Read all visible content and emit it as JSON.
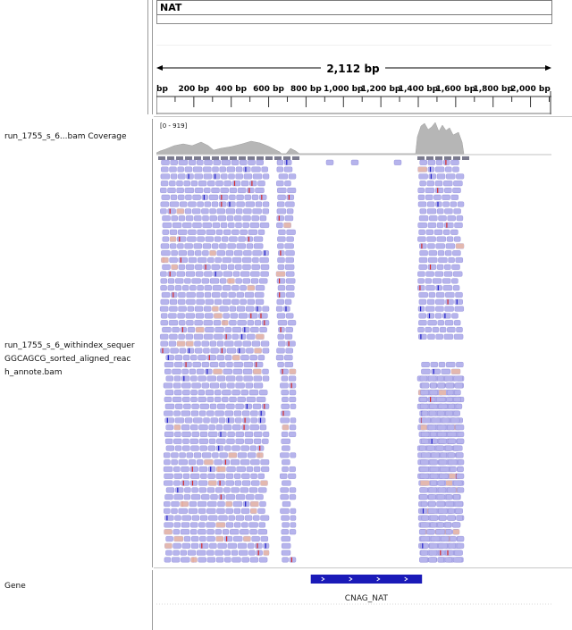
{
  "header": {
    "chromosome": "NAT",
    "span_label": "2,112 bp"
  },
  "ruler": {
    "ticks": [
      {
        "label": "bp",
        "pos": 0
      },
      {
        "label": "200 bp",
        "pos": 200
      },
      {
        "label": "400 bp",
        "pos": 400
      },
      {
        "label": "600 bp",
        "pos": 600
      },
      {
        "label": "800 bp",
        "pos": 800
      },
      {
        "label": "1,000 bp",
        "pos": 1000
      },
      {
        "label": "1,200 bp",
        "pos": 1200
      },
      {
        "label": "1,400 bp",
        "pos": 1400
      },
      {
        "label": "1,600 bp",
        "pos": 1600
      },
      {
        "label": "1,800 bp",
        "pos": 1800
      },
      {
        "label": "2,000 bp",
        "pos": 2000
      }
    ],
    "total_bp": 2112
  },
  "tracks": {
    "coverage_name": "run_1755_s_6...bam Coverage",
    "coverage_range": "[0 - 919]",
    "alignment_name_lines": [
      "run_1755_s_6_withindex_sequer",
      "GGCAGCG_sorted_aligned_reac",
      "h_annote.bam"
    ],
    "gene_track_name": "Gene"
  },
  "gene": {
    "name": "CNAG_NAT",
    "start_bp": 825,
    "end_bp": 1420,
    "strand": "+"
  },
  "colors": {
    "read": "#b6b4ec",
    "read_border": "#8d89d8",
    "coverage": "#b3b3b3",
    "gene": "#1a1ab8",
    "mismatch_red": "#d62828",
    "mismatch_blue": "#2020c8",
    "soft_clip": "#e8b8a8"
  }
}
